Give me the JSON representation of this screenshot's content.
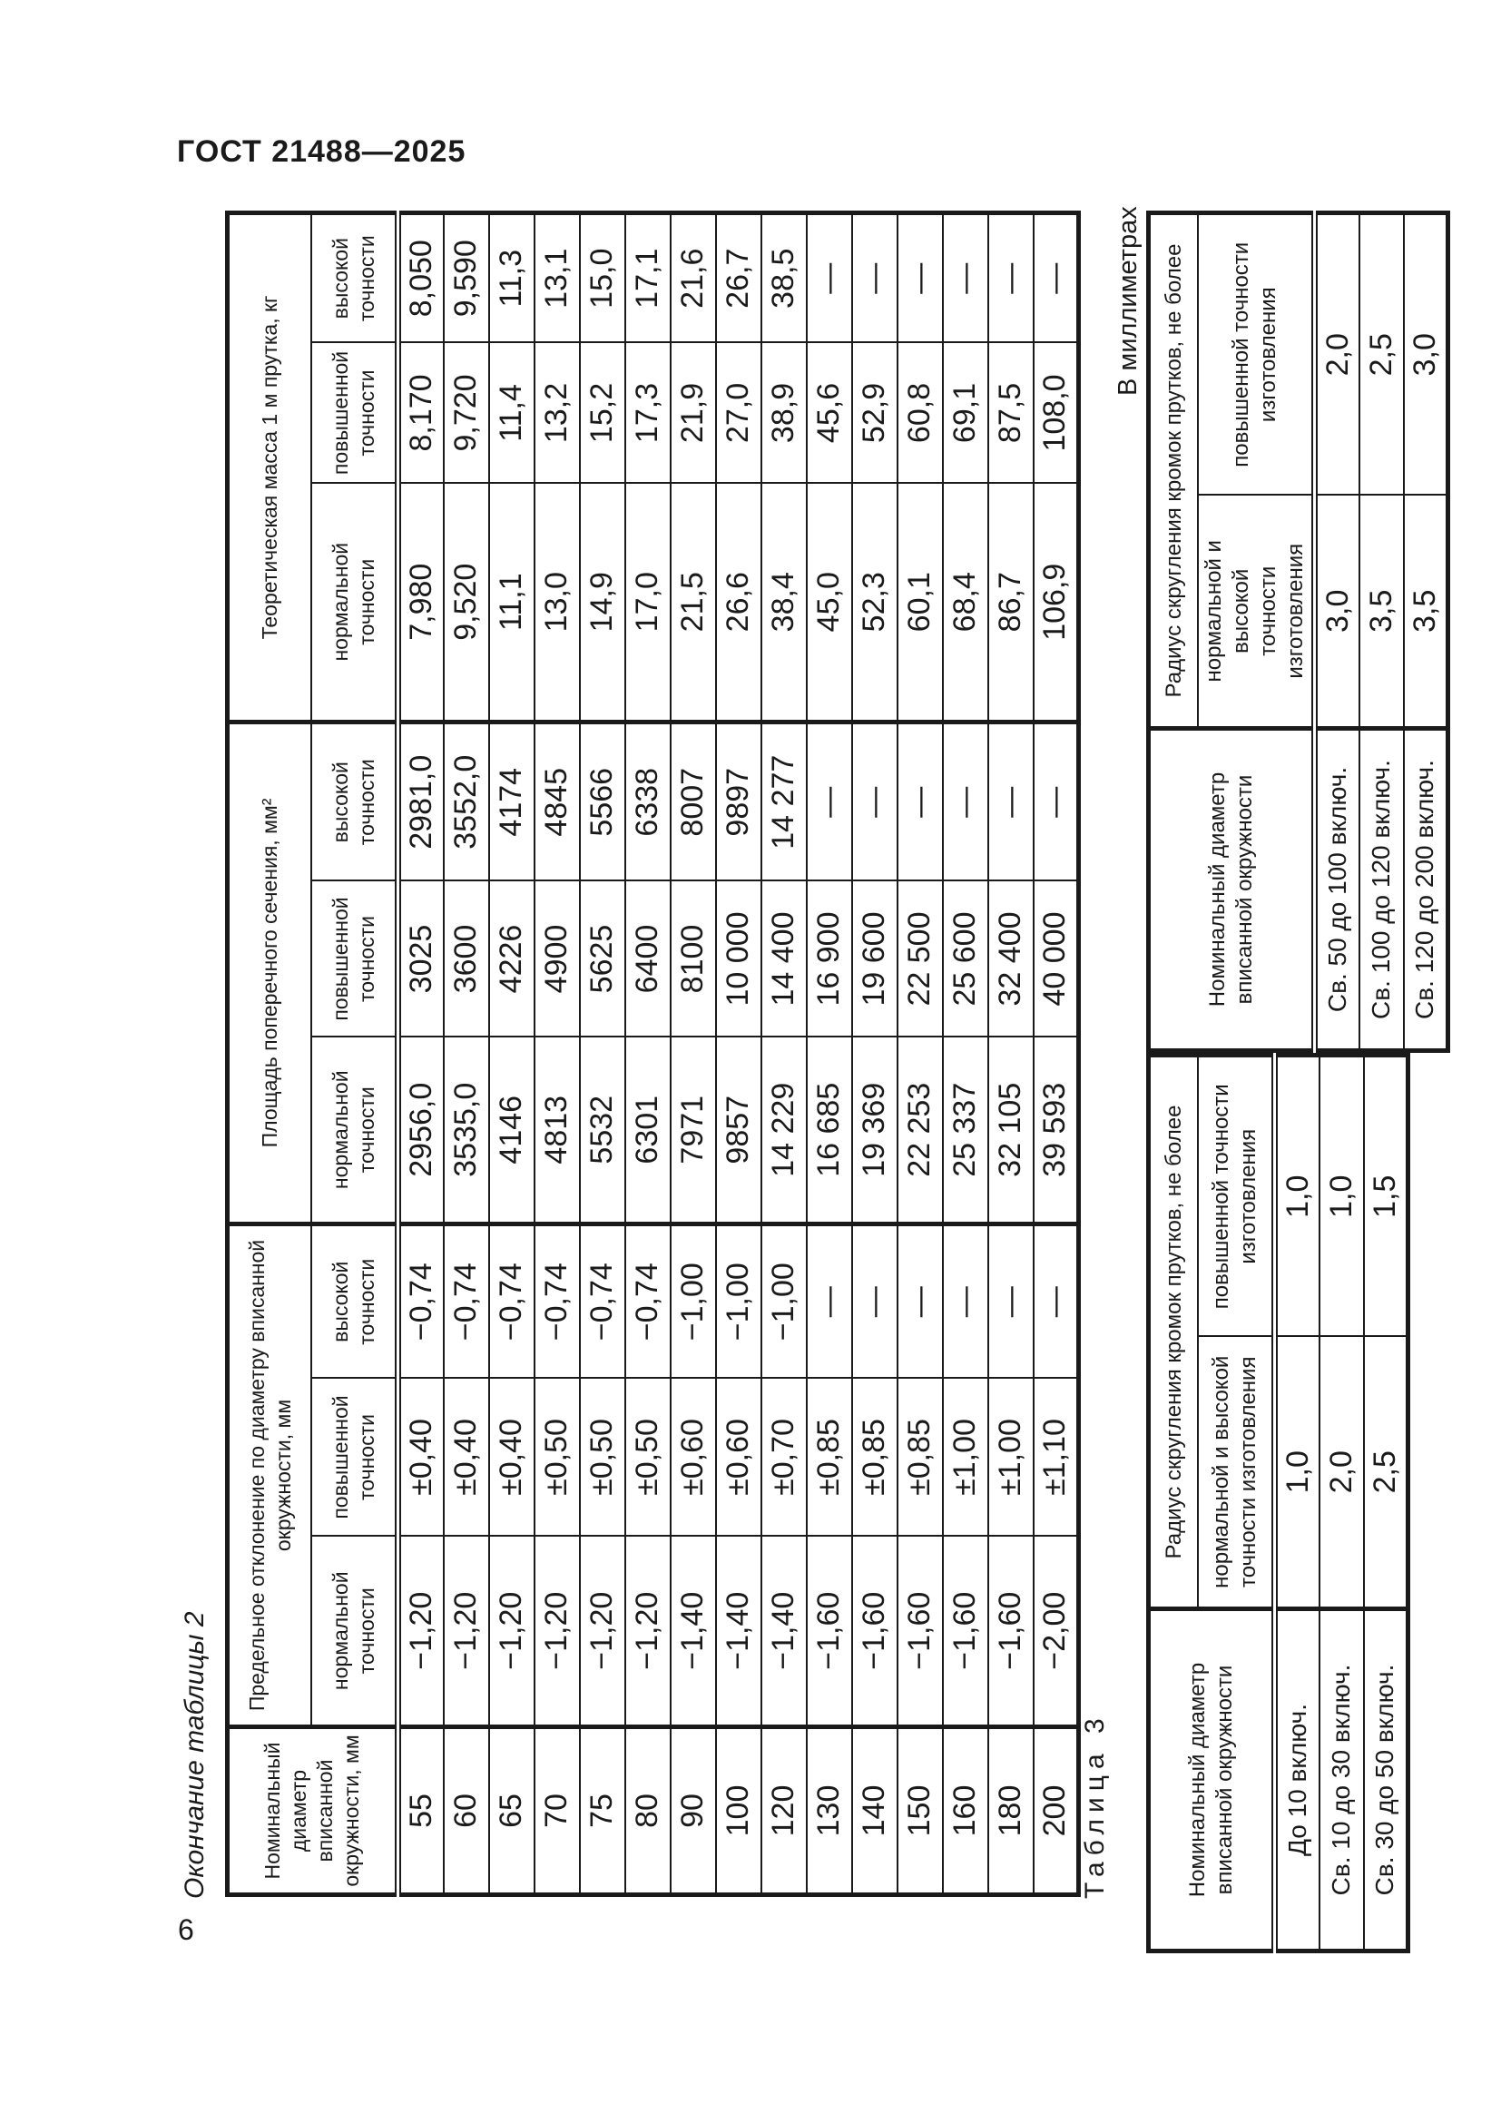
{
  "page": {
    "doc_header": "ГОСТ 21488—2025",
    "page_number": "6",
    "table2_caption": "Окончание таблицы 2",
    "table3_caption": "Таблица 3",
    "units_note": "В миллиметрах"
  },
  "table2": {
    "head": {
      "diameter": "Номинальный\nдиаметр\nвписанной\nокружности, мм",
      "deviation": "Предельное отклонение по диаметру вписанной\nокружности, мм",
      "area": "Площадь поперечного сечения, мм²",
      "mass": "Теоретическая масса 1 м прутка, кг",
      "sub_normal": "нормальной\nточности",
      "sub_increased": "повышенной\nточности",
      "sub_high": "высокой\nточности"
    },
    "rows": [
      {
        "d": "55",
        "dev_n": "−1,20",
        "dev_p": "±0,40",
        "dev_v": "−0,74",
        "s_n": "2956,0",
        "s_p": "3025",
        "s_v": "2981,0",
        "m_n": "7,980",
        "m_p": "8,170",
        "m_v": "8,050"
      },
      {
        "d": "60",
        "dev_n": "−1,20",
        "dev_p": "±0,40",
        "dev_v": "−0,74",
        "s_n": "3535,0",
        "s_p": "3600",
        "s_v": "3552,0",
        "m_n": "9,520",
        "m_p": "9,720",
        "m_v": "9,590"
      },
      {
        "d": "65",
        "dev_n": "−1,20",
        "dev_p": "±0,40",
        "dev_v": "−0,74",
        "s_n": "4146",
        "s_p": "4226",
        "s_v": "4174",
        "m_n": "11,1",
        "m_p": "11,4",
        "m_v": "11,3"
      },
      {
        "d": "70",
        "dev_n": "−1,20",
        "dev_p": "±0,50",
        "dev_v": "−0,74",
        "s_n": "4813",
        "s_p": "4900",
        "s_v": "4845",
        "m_n": "13,0",
        "m_p": "13,2",
        "m_v": "13,1"
      },
      {
        "d": "75",
        "dev_n": "−1,20",
        "dev_p": "±0,50",
        "dev_v": "−0,74",
        "s_n": "5532",
        "s_p": "5625",
        "s_v": "5566",
        "m_n": "14,9",
        "m_p": "15,2",
        "m_v": "15,0"
      },
      {
        "d": "80",
        "dev_n": "−1,20",
        "dev_p": "±0,50",
        "dev_v": "−0,74",
        "s_n": "6301",
        "s_p": "6400",
        "s_v": "6338",
        "m_n": "17,0",
        "m_p": "17,3",
        "m_v": "17,1"
      },
      {
        "d": "90",
        "dev_n": "−1,40",
        "dev_p": "±0,60",
        "dev_v": "−1,00",
        "s_n": "7971",
        "s_p": "8100",
        "s_v": "8007",
        "m_n": "21,5",
        "m_p": "21,9",
        "m_v": "21,6"
      },
      {
        "d": "100",
        "dev_n": "−1,40",
        "dev_p": "±0,60",
        "dev_v": "−1,00",
        "s_n": "9857",
        "s_p": "10 000",
        "s_v": "9897",
        "m_n": "26,6",
        "m_p": "27,0",
        "m_v": "26,7"
      },
      {
        "d": "120",
        "dev_n": "−1,40",
        "dev_p": "±0,70",
        "dev_v": "−1,00",
        "s_n": "14 229",
        "s_p": "14 400",
        "s_v": "14 277",
        "m_n": "38,4",
        "m_p": "38,9",
        "m_v": "38,5"
      },
      {
        "d": "130",
        "dev_n": "−1,60",
        "dev_p": "±0,85",
        "dev_v": "—",
        "s_n": "16 685",
        "s_p": "16 900",
        "s_v": "—",
        "m_n": "45,0",
        "m_p": "45,6",
        "m_v": "—"
      },
      {
        "d": "140",
        "dev_n": "−1,60",
        "dev_p": "±0,85",
        "dev_v": "—",
        "s_n": "19 369",
        "s_p": "19 600",
        "s_v": "—",
        "m_n": "52,3",
        "m_p": "52,9",
        "m_v": "—"
      },
      {
        "d": "150",
        "dev_n": "−1,60",
        "dev_p": "±0,85",
        "dev_v": "—",
        "s_n": "22 253",
        "s_p": "22 500",
        "s_v": "—",
        "m_n": "60,1",
        "m_p": "60,8",
        "m_v": "—"
      },
      {
        "d": "160",
        "dev_n": "−1,60",
        "dev_p": "±1,00",
        "dev_v": "—",
        "s_n": "25 337",
        "s_p": "25 600",
        "s_v": "—",
        "m_n": "68,4",
        "m_p": "69,1",
        "m_v": "—"
      },
      {
        "d": "180",
        "dev_n": "−1,60",
        "dev_p": "±1,00",
        "dev_v": "—",
        "s_n": "32 105",
        "s_p": "32 400",
        "s_v": "—",
        "m_n": "86,7",
        "m_p": "87,5",
        "m_v": "—"
      },
      {
        "d": "200",
        "dev_n": "−2,00",
        "dev_p": "±1,10",
        "dev_v": "—",
        "s_n": "39 593",
        "s_p": "40 000",
        "s_v": "—",
        "m_n": "106,9",
        "m_p": "108,0",
        "m_v": "—"
      }
    ]
  },
  "table3": {
    "head": {
      "diameter": "Номинальный диаметр\nвписанной окружности",
      "radius": "Радиус скругления кромок прутков, не более",
      "sub_normal_high": "нормальной и высокой\nточности изготовления",
      "sub_increased": "повышенной точности\nизготовления"
    },
    "part1": {
      "rows": [
        {
          "label": "До 10 включ.",
          "r_nv": "1,0",
          "r_p": "1,0"
        },
        {
          "label": "Св. 10 до 30 включ.",
          "r_nv": "2,0",
          "r_p": "1,0"
        },
        {
          "label": "Св. 30 до 50 включ.",
          "r_nv": "2,5",
          "r_p": "1,5"
        }
      ]
    },
    "part2": {
      "rows": [
        {
          "label": "Св. 50 до 100 включ.",
          "r_nv": "3,0",
          "r_p": "2,0"
        },
        {
          "label": "Св. 100 до 120 включ.",
          "r_nv": "3,5",
          "r_p": "2,5"
        },
        {
          "label": "Св. 120 до 200 включ.",
          "r_nv": "3,5",
          "r_p": "3,0"
        }
      ]
    }
  }
}
